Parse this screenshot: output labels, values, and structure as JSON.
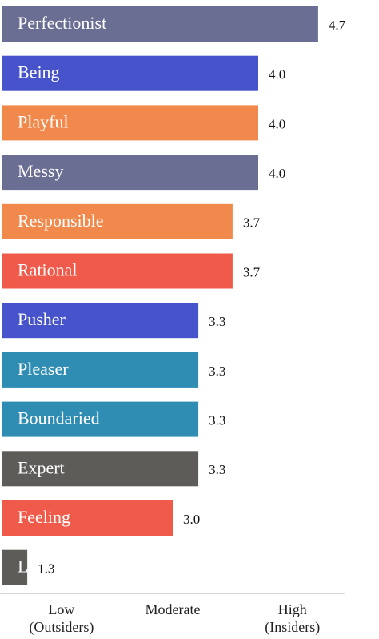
{
  "chart_data": {
    "type": "bar",
    "orientation": "horizontal",
    "categories": [
      "Perfectionist",
      "Being",
      "Playful",
      "Messy",
      "Responsible",
      "Rational",
      "Pusher",
      "Pleaser",
      "Boundaried",
      "Expert",
      "Feeling",
      "L"
    ],
    "values": [
      4.7,
      4.0,
      4.0,
      4.0,
      3.7,
      3.7,
      3.3,
      3.3,
      3.3,
      3.3,
      3.0,
      1.3
    ],
    "value_labels": [
      "4.7",
      "4.0",
      "4.0",
      "4.0",
      "3.7",
      "3.7",
      "3.3",
      "3.3",
      "3.3",
      "3.3",
      "3.0",
      "1.3"
    ],
    "colors": [
      "#6b6e93",
      "#4753cb",
      "#f0894b",
      "#6b6e93",
      "#f0894b",
      "#ef5a4a",
      "#4753cb",
      "#2f8db3",
      "#2f8db3",
      "#5e5c58",
      "#ef5a4a",
      "#5e5c58"
    ],
    "xlim": [
      1,
      5
    ],
    "xticks": [
      {
        "value": 1.7,
        "label": "Low\n(Outsiders)"
      },
      {
        "value": 3,
        "label": "Moderate"
      },
      {
        "value": 4.4,
        "label": "High\n(Insiders)"
      }
    ]
  }
}
